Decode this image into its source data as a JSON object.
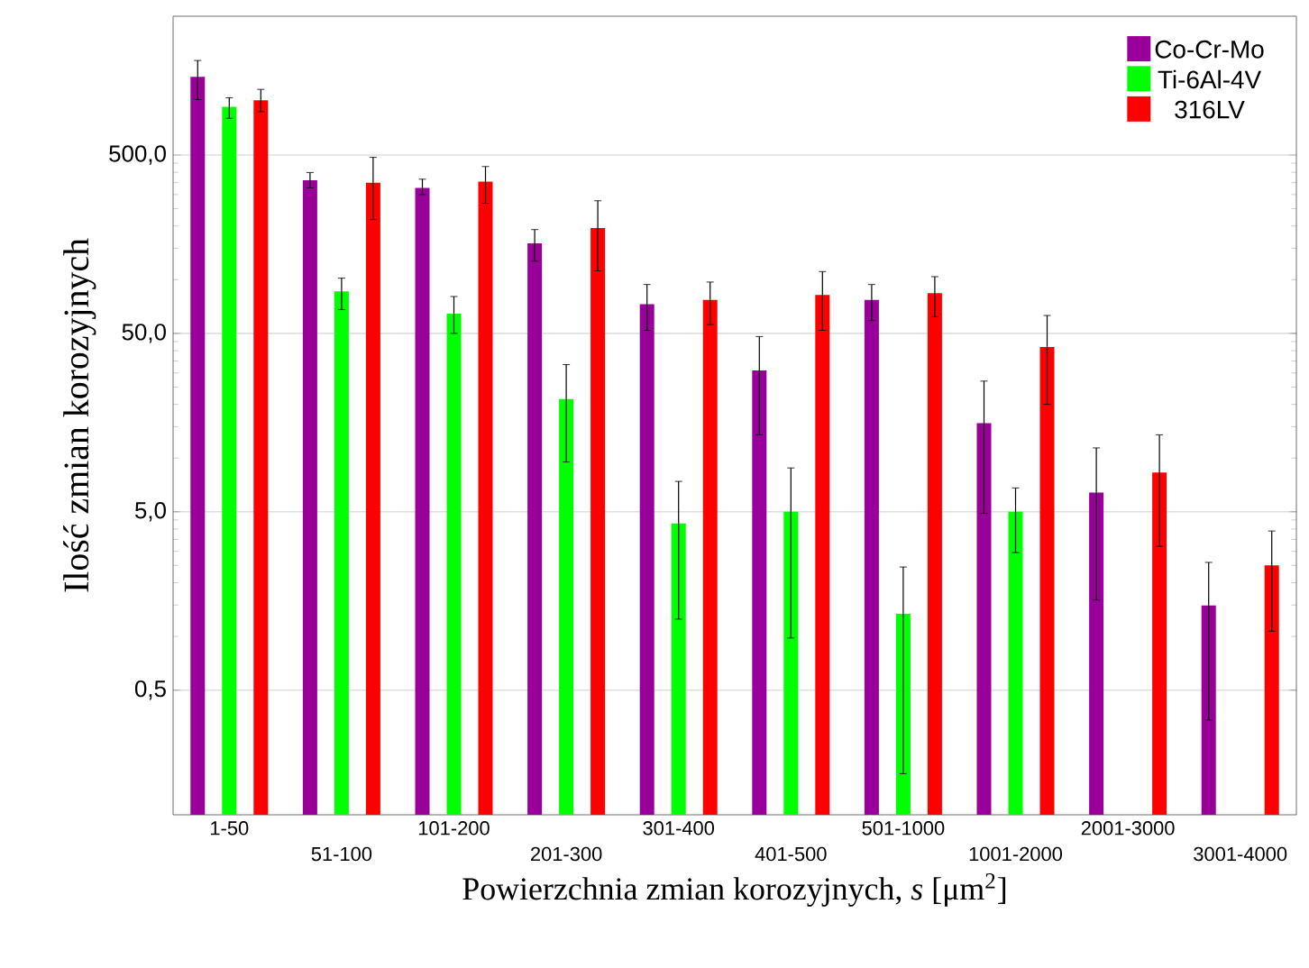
{
  "chart_data": {
    "type": "bar",
    "xlabel": "Powierzchnia zmian korozyjnych, *s* [μm$^{2}$]",
    "ylabel": "Ilość zmian korozyjnych",
    "categories": [
      "1-50",
      "51-100",
      "101-200",
      "201-300",
      "301-400",
      "401-500",
      "501-1000",
      "1001-2000",
      "2001-3000",
      "3001-4000"
    ],
    "log": "y",
    "ylim": [
      0.1,
      3000
    ],
    "yticks": [
      {
        "value": 0.5,
        "label": "0,5"
      },
      {
        "value": 5,
        "label": "5,0"
      },
      {
        "value": 50,
        "label": "50,0"
      },
      {
        "value": 500,
        "label": "500,0"
      }
    ],
    "grid": "y",
    "legend": "top right",
    "series": [
      {
        "name": "Co-Cr-Mo",
        "color": "#990099",
        "values": [
          1370,
          361,
          327,
          160,
          73,
          31,
          77,
          15.7,
          6.4,
          1.49
        ],
        "errors": [
          [
            1023,
            1694
          ],
          [
            327,
            399
          ],
          [
            300,
            366
          ],
          [
            127,
            191
          ],
          [
            52,
            94
          ],
          [
            13.5,
            48
          ],
          [
            59,
            94
          ],
          [
            4.9,
            27
          ],
          [
            1.6,
            11.4
          ],
          [
            0.34,
            2.6
          ]
        ]
      },
      {
        "name": "Ti-6Al-4V",
        "color": "#00ff00",
        "values": [
          932,
          86,
          64.6,
          21.4,
          4.3,
          5.0,
          1.34,
          5.0,
          null,
          null
        ],
        "errors": [
          [
            803,
            1047
          ],
          [
            68,
            102
          ],
          [
            50,
            80.5
          ],
          [
            9.5,
            33.4
          ],
          [
            1.25,
            7.4
          ],
          [
            0.98,
            8.8
          ],
          [
            0.17,
            2.45
          ],
          [
            2.95,
            6.8
          ],
          null,
          null
        ]
      },
      {
        "name": "316LV",
        "color": "#ff0000",
        "values": [
          1014,
          350,
          355,
          195,
          77,
          82,
          84,
          42,
          8.3,
          2.5
        ],
        "errors": [
          [
            875,
            1167
          ],
          [
            217,
            485
          ],
          [
            268,
            431
          ],
          [
            112,
            277
          ],
          [
            56,
            97
          ],
          [
            52,
            111
          ],
          [
            62,
            104
          ],
          [
            20,
            63
          ],
          [
            3.2,
            13.5
          ],
          [
            1.07,
            3.9
          ]
        ]
      }
    ]
  }
}
